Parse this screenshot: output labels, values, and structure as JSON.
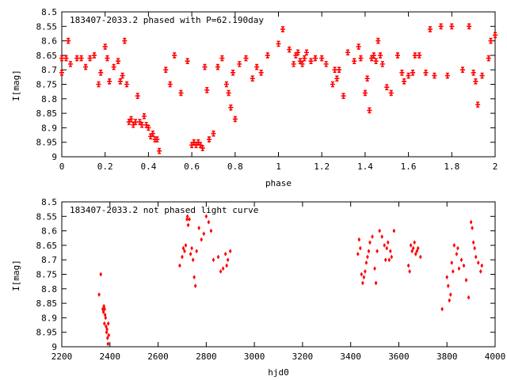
{
  "chart_data": [
    {
      "type": "scatter",
      "title": "183407-2033.2 phased with P=62.190day",
      "xlabel": "phase",
      "ylabel": "I[mag]",
      "xlim": [
        0,
        2
      ],
      "ylim": [
        9,
        8.5
      ],
      "y_inverted": true,
      "x_ticks": [
        0,
        0.2,
        0.4,
        0.6,
        0.8,
        1,
        1.2,
        1.4,
        1.6,
        1.8,
        2
      ],
      "x_tick_labels": [
        "0",
        "0.2",
        "0.4",
        "0.6",
        "0.8",
        "1",
        "1.2",
        "1.4",
        "1.6",
        "1.8",
        "2"
      ],
      "y_ticks": [
        8.5,
        8.55,
        8.6,
        8.65,
        8.7,
        8.75,
        8.8,
        8.85,
        8.9,
        8.95,
        9
      ],
      "y_tick_labels": [
        "8.5",
        "8.55",
        "8.6",
        "8.65",
        "8.7",
        "8.75",
        "8.8",
        "8.85",
        "8.9",
        "8.95",
        "9"
      ],
      "grid": false,
      "marker": "error-bar cross",
      "color": "#ff0000",
      "series": [
        {
          "x": [
            0.0,
            0.0,
            0.02,
            0.03,
            0.04,
            0.07,
            0.09,
            0.11,
            0.13,
            0.15,
            0.17,
            0.18,
            0.2,
            0.21,
            0.22,
            0.24,
            0.26,
            0.27,
            0.28,
            0.29,
            0.3,
            0.31,
            0.32,
            0.33,
            0.34,
            0.35,
            0.36,
            0.37,
            0.38,
            0.39,
            0.4,
            0.41,
            0.42,
            0.43,
            0.44,
            0.45,
            0.48,
            0.5,
            0.52,
            0.55,
            0.58,
            0.6,
            0.61,
            0.62,
            0.63,
            0.64,
            0.65,
            0.66,
            0.67,
            0.68,
            0.7,
            0.72,
            0.74,
            0.76,
            0.77,
            0.78,
            0.79,
            0.8,
            0.82,
            0.85,
            0.88,
            0.9,
            0.92,
            0.95,
            1.0,
            1.02,
            1.05,
            1.07,
            1.08,
            1.09,
            1.1,
            1.11,
            1.12,
            1.13,
            1.15,
            1.17,
            1.2,
            1.22,
            1.25,
            1.26,
            1.27,
            1.28,
            1.3,
            1.32,
            1.35,
            1.37,
            1.38,
            1.4,
            1.41,
            1.42,
            1.43,
            1.44,
            1.45,
            1.46,
            1.47,
            1.48,
            1.5,
            1.52,
            1.55,
            1.57,
            1.58,
            1.6,
            1.62,
            1.63,
            1.65,
            1.68,
            1.7,
            1.72,
            1.75,
            1.78,
            1.8,
            1.85,
            1.88,
            1.9,
            1.91,
            1.92,
            1.94,
            1.97,
            1.98,
            2.0
          ],
          "y": [
            8.66,
            8.71,
            8.66,
            8.6,
            8.68,
            8.66,
            8.66,
            8.69,
            8.66,
            8.65,
            8.75,
            8.71,
            8.62,
            8.66,
            8.74,
            8.69,
            8.67,
            8.74,
            8.72,
            8.6,
            8.75,
            8.88,
            8.87,
            8.89,
            8.88,
            8.79,
            8.88,
            8.89,
            8.86,
            8.89,
            8.9,
            8.93,
            8.92,
            8.94,
            8.94,
            8.98,
            8.7,
            8.75,
            8.65,
            8.78,
            8.67,
            8.96,
            8.95,
            8.96,
            8.95,
            8.96,
            8.97,
            8.69,
            8.77,
            8.94,
            8.92,
            8.69,
            8.66,
            8.75,
            8.78,
            8.83,
            8.71,
            8.87,
            8.68,
            8.66,
            8.73,
            8.69,
            8.71,
            8.65,
            8.61,
            8.56,
            8.63,
            8.68,
            8.65,
            8.64,
            8.67,
            8.68,
            8.66,
            8.64,
            8.67,
            8.66,
            8.66,
            8.68,
            8.75,
            8.7,
            8.73,
            8.7,
            8.79,
            8.64,
            8.67,
            8.62,
            8.66,
            8.78,
            8.73,
            8.84,
            8.66,
            8.65,
            8.67,
            8.6,
            8.65,
            8.68,
            8.76,
            8.78,
            8.65,
            8.71,
            8.74,
            8.72,
            8.71,
            8.65,
            8.65,
            8.71,
            8.56,
            8.72,
            8.55,
            8.72,
            8.55,
            8.7,
            8.55,
            8.71,
            8.74,
            8.82,
            8.72,
            8.66,
            8.6,
            8.58
          ]
        }
      ]
    },
    {
      "type": "scatter",
      "title": "183407-2033.2 not phased light curve",
      "xlabel": "hjd0",
      "ylabel": "I[mag]",
      "xlim": [
        2200,
        4000
      ],
      "ylim": [
        9,
        8.5
      ],
      "y_inverted": true,
      "x_ticks": [
        2200,
        2400,
        2600,
        2800,
        3000,
        3200,
        3400,
        3600,
        3800,
        4000
      ],
      "x_tick_labels": [
        "2200",
        "2400",
        "2600",
        "2800",
        "3000",
        "3200",
        "3400",
        "3600",
        "3800",
        "4000"
      ],
      "y_ticks": [
        8.5,
        8.55,
        8.6,
        8.65,
        8.7,
        8.75,
        8.8,
        8.85,
        8.9,
        8.95,
        9
      ],
      "y_tick_labels": [
        "8.5",
        "8.55",
        "8.6",
        "8.65",
        "8.7",
        "8.75",
        "8.8",
        "8.85",
        "8.9",
        "8.95",
        "9"
      ],
      "grid": false,
      "marker": "small dot with error bar",
      "color": "#ff0000",
      "series": [
        {
          "x": [
            2355,
            2362,
            2370,
            2373,
            2375,
            2377,
            2378,
            2380,
            2382,
            2384,
            2386,
            2388,
            2390,
            2392,
            2393,
            2395,
            2690,
            2700,
            2705,
            2710,
            2715,
            2720,
            2722,
            2725,
            2730,
            2735,
            2740,
            2745,
            2750,
            2755,
            2760,
            2770,
            2780,
            2790,
            2800,
            2810,
            2820,
            2830,
            2850,
            2860,
            2870,
            2880,
            2885,
            2890,
            2900,
            3430,
            3435,
            3440,
            3445,
            3450,
            3455,
            3460,
            3465,
            3470,
            3475,
            3480,
            3490,
            3500,
            3505,
            3510,
            3520,
            3530,
            3540,
            3545,
            3550,
            3555,
            3560,
            3565,
            3570,
            3580,
            3640,
            3645,
            3650,
            3655,
            3660,
            3665,
            3670,
            3675,
            3680,
            3690,
            3780,
            3800,
            3805,
            3810,
            3815,
            3820,
            3825,
            3830,
            3840,
            3845,
            3850,
            3860,
            3870,
            3880,
            3890,
            3900,
            3905,
            3910,
            3915,
            3920,
            3930,
            3940,
            3945
          ],
          "y": [
            8.82,
            8.75,
            8.87,
            8.88,
            8.86,
            8.92,
            8.87,
            8.89,
            8.9,
            8.93,
            8.95,
            8.94,
            8.97,
            8.99,
            8.92,
            8.96,
            8.72,
            8.69,
            8.66,
            8.67,
            8.65,
            8.56,
            8.55,
            8.58,
            8.56,
            8.68,
            8.66,
            8.7,
            8.76,
            8.79,
            8.67,
            8.59,
            8.63,
            8.61,
            8.55,
            8.57,
            8.6,
            8.7,
            8.69,
            8.74,
            8.73,
            8.68,
            8.72,
            8.7,
            8.67,
            8.68,
            8.63,
            8.66,
            8.75,
            8.78,
            8.76,
            8.74,
            8.71,
            8.69,
            8.67,
            8.64,
            8.62,
            8.73,
            8.78,
            8.67,
            8.6,
            8.62,
            8.65,
            8.7,
            8.66,
            8.64,
            8.7,
            8.67,
            8.69,
            8.6,
            8.72,
            8.74,
            8.65,
            8.67,
            8.66,
            8.64,
            8.68,
            8.67,
            8.66,
            8.69,
            8.87,
            8.76,
            8.79,
            8.84,
            8.82,
            8.71,
            8.74,
            8.65,
            8.68,
            8.66,
            8.73,
            8.7,
            8.72,
            8.77,
            8.83,
            8.57,
            8.59,
            8.64,
            8.66,
            8.69,
            8.71,
            8.74,
            8.72
          ]
        }
      ]
    }
  ]
}
